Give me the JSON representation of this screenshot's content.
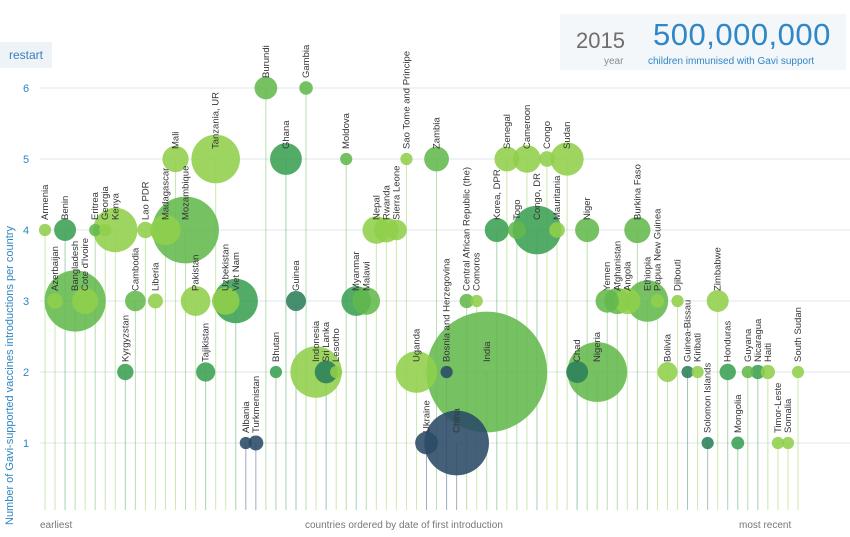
{
  "controls": {
    "restart_label": "restart"
  },
  "counter": {
    "year": "2015",
    "year_label": "year",
    "count": "500,000,000",
    "count_label": "children immunised with Gavi support"
  },
  "colors": {
    "palette": [
      "#8fcf4a",
      "#63b84c",
      "#3aa052",
      "#2b7f5a",
      "#2a4a66"
    ]
  },
  "chart_data": {
    "type": "scatter",
    "encoding": "bubble",
    "ylabel": "Number of Gavi-supported vaccines introductions per country",
    "x_axis": {
      "left": "earliest",
      "center": "countries ordered by date of first introduction",
      "right": "most recent"
    },
    "yticks": [
      1,
      2,
      3,
      4,
      5,
      6
    ],
    "ylim": [
      0,
      6.8
    ],
    "grid": true,
    "points": [
      {
        "country": "Armenia",
        "x": 0,
        "y": 4,
        "size": 1,
        "color": "#8fcf4a"
      },
      {
        "country": "Azerbaijan",
        "x": 1,
        "y": 3,
        "size": 1.5,
        "color": "#8fcf4a"
      },
      {
        "country": "Benin",
        "x": 2,
        "y": 4,
        "size": 2.4,
        "color": "#3aa052"
      },
      {
        "country": "Bangladesh",
        "x": 3,
        "y": 3,
        "size": 8,
        "color": "#63b84c"
      },
      {
        "country": "Cote d'Ivoire",
        "x": 4,
        "y": 3,
        "size": 3,
        "color": "#8fcf4a"
      },
      {
        "country": "Eritrea",
        "x": 5,
        "y": 4,
        "size": 1,
        "color": "#63b84c"
      },
      {
        "country": "Georgia",
        "x": 6,
        "y": 4,
        "size": 1,
        "color": "#8fcf4a"
      },
      {
        "country": "Kenya",
        "x": 7,
        "y": 4,
        "size": 5.6,
        "color": "#8fcf4a"
      },
      {
        "country": "Kyrgyzstan",
        "x": 8,
        "y": 2,
        "size": 1.6,
        "color": "#3aa052"
      },
      {
        "country": "Cambodia",
        "x": 9,
        "y": 3,
        "size": 2.2,
        "color": "#63b84c"
      },
      {
        "country": "Lao PDR",
        "x": 10,
        "y": 4,
        "size": 1.6,
        "color": "#8fcf4a"
      },
      {
        "country": "Liberia",
        "x": 11,
        "y": 3,
        "size": 1.4,
        "color": "#8fcf4a"
      },
      {
        "country": "Madagascar",
        "x": 12,
        "y": 4,
        "size": 3.6,
        "color": "#8fcf4a"
      },
      {
        "country": "Mali",
        "x": 13,
        "y": 5,
        "size": 3,
        "color": "#8fcf4a"
      },
      {
        "country": "Mozambique",
        "x": 14,
        "y": 4,
        "size": 8.8,
        "color": "#63b84c"
      },
      {
        "country": "Pakistan",
        "x": 15,
        "y": 3,
        "size": 3.5,
        "color": "#8fcf4a"
      },
      {
        "country": "Tajikistan",
        "x": 16,
        "y": 2,
        "size": 2,
        "color": "#3aa052"
      },
      {
        "country": "Tanzania, UR",
        "x": 17,
        "y": 5,
        "size": 6.2,
        "color": "#8fcf4a"
      },
      {
        "country": "Uzbekistan",
        "x": 18,
        "y": 3,
        "size": 3.2,
        "color": "#8fcf4a"
      },
      {
        "country": "Viet Nam",
        "x": 19,
        "y": 3,
        "size": 5.6,
        "color": "#3aa052"
      },
      {
        "country": "Albania",
        "x": 20,
        "y": 1,
        "size": 1,
        "color": "#2a4a66"
      },
      {
        "country": "Turkmenistan",
        "x": 21,
        "y": 1,
        "size": 1.4,
        "color": "#2a4a66"
      },
      {
        "country": "Burundi",
        "x": 22,
        "y": 6,
        "size": 2.5,
        "color": "#63b84c"
      },
      {
        "country": "Bhutan",
        "x": 23,
        "y": 2,
        "size": 1,
        "color": "#3aa052"
      },
      {
        "country": "Ghana",
        "x": 24,
        "y": 5,
        "size": 3.8,
        "color": "#3aa052"
      },
      {
        "country": "Guinea",
        "x": 25,
        "y": 3,
        "size": 2.1,
        "color": "#2b7f5a"
      },
      {
        "country": "Gambia",
        "x": 26,
        "y": 6,
        "size": 1.2,
        "color": "#63b84c"
      },
      {
        "country": "Indonesia",
        "x": 27,
        "y": 2,
        "size": 6.6,
        "color": "#8fcf4a"
      },
      {
        "country": "Sri Lanka",
        "x": 28,
        "y": 2,
        "size": 2.5,
        "color": "#2b7f5a"
      },
      {
        "country": "Lesotho",
        "x": 29,
        "y": 2,
        "size": 1,
        "color": "#8fcf4a"
      },
      {
        "country": "Moldova",
        "x": 30,
        "y": 5,
        "size": 1,
        "color": "#63b84c"
      },
      {
        "country": "Myanmar",
        "x": 31,
        "y": 3,
        "size": 3.5,
        "color": "#3aa052"
      },
      {
        "country": "Malawi",
        "x": 32,
        "y": 3,
        "size": 3.2,
        "color": "#63b84c"
      },
      {
        "country": "Nepal",
        "x": 33,
        "y": 4,
        "size": 3.2,
        "color": "#8fcf4a"
      },
      {
        "country": "Rwanda",
        "x": 34,
        "y": 4,
        "size": 2.8,
        "color": "#8fcf4a"
      },
      {
        "country": "Sierra Leone",
        "x": 35,
        "y": 4,
        "size": 2.2,
        "color": "#8fcf4a"
      },
      {
        "country": "Sao Tome and Principe",
        "x": 36,
        "y": 5,
        "size": 1,
        "color": "#8fcf4a"
      },
      {
        "country": "Uganda",
        "x": 37,
        "y": 2,
        "size": 5.2,
        "color": "#8fcf4a"
      },
      {
        "country": "Ukraine",
        "x": 38,
        "y": 1,
        "size": 2.5,
        "color": "#2a4a66"
      },
      {
        "country": "Zambia",
        "x": 39,
        "y": 5,
        "size": 2.8,
        "color": "#63b84c"
      },
      {
        "country": "Bosnia and Herzegovina",
        "x": 40,
        "y": 2,
        "size": 1,
        "color": "#2a4a66"
      },
      {
        "country": "China",
        "x": 41,
        "y": 1,
        "size": 8.5,
        "color": "#2a4a66"
      },
      {
        "country": "Central African Republic (the)",
        "x": 42,
        "y": 3,
        "size": 1.3,
        "color": "#63b84c"
      },
      {
        "country": "Comoros",
        "x": 43,
        "y": 3,
        "size": 1,
        "color": "#8fcf4a"
      },
      {
        "country": "India",
        "x": 44,
        "y": 2,
        "size": 16.5,
        "color": "#63b84c"
      },
      {
        "country": "Korea, DPR",
        "x": 45,
        "y": 4,
        "size": 2.7,
        "color": "#3aa052"
      },
      {
        "country": "Senegal",
        "x": 46,
        "y": 5,
        "size": 2.8,
        "color": "#8fcf4a"
      },
      {
        "country": "Togo",
        "x": 47,
        "y": 4,
        "size": 1.8,
        "color": "#63b84c"
      },
      {
        "country": "Cameroon",
        "x": 48,
        "y": 5,
        "size": 3.2,
        "color": "#8fcf4a"
      },
      {
        "country": "Congo, DR",
        "x": 49,
        "y": 4,
        "size": 6.2,
        "color": "#3aa052"
      },
      {
        "country": "Congo",
        "x": 50,
        "y": 5,
        "size": 1.5,
        "color": "#8fcf4a"
      },
      {
        "country": "Mauritania",
        "x": 51,
        "y": 4,
        "size": 1.5,
        "color": "#8fcf4a"
      },
      {
        "country": "Sudan",
        "x": 52,
        "y": 5,
        "size": 4,
        "color": "#8fcf4a"
      },
      {
        "country": "Chad",
        "x": 53,
        "y": 2,
        "size": 2.4,
        "color": "#2b7f5a"
      },
      {
        "country": "Niger",
        "x": 54,
        "y": 4,
        "size": 2.7,
        "color": "#63b84c"
      },
      {
        "country": "Nigeria",
        "x": 55,
        "y": 2,
        "size": 7.8,
        "color": "#63b84c"
      },
      {
        "country": "Yemen",
        "x": 56,
        "y": 3,
        "size": 2.6,
        "color": "#63b84c"
      },
      {
        "country": "Afghanistan",
        "x": 57,
        "y": 3,
        "size": 3,
        "color": "#63b84c"
      },
      {
        "country": "Angola",
        "x": 58,
        "y": 3,
        "size": 3,
        "color": "#8fcf4a"
      },
      {
        "country": "Burkina Faso",
        "x": 59,
        "y": 4,
        "size": 3,
        "color": "#63b84c"
      },
      {
        "country": "Ethiopia",
        "x": 60,
        "y": 3,
        "size": 5.2,
        "color": "#63b84c"
      },
      {
        "country": "Papua New Guinea",
        "x": 61,
        "y": 3,
        "size": 1.2,
        "color": "#8fcf4a"
      },
      {
        "country": "Bolivia",
        "x": 62,
        "y": 2,
        "size": 2.1,
        "color": "#8fcf4a"
      },
      {
        "country": "Djibouti",
        "x": 63,
        "y": 3,
        "size": 1,
        "color": "#8fcf4a"
      },
      {
        "country": "Guinea-Bissau",
        "x": 64,
        "y": 2,
        "size": 1,
        "color": "#2b7f5a"
      },
      {
        "country": "Kiribati",
        "x": 65,
        "y": 2,
        "size": 1,
        "color": "#8fcf4a"
      },
      {
        "country": "Solomon Islands",
        "x": 66,
        "y": 1,
        "size": 1,
        "color": "#2b7f5a"
      },
      {
        "country": "Zimbabwe",
        "x": 67,
        "y": 3,
        "size": 2.4,
        "color": "#8fcf4a"
      },
      {
        "country": "Honduras",
        "x": 68,
        "y": 2,
        "size": 1.6,
        "color": "#3aa052"
      },
      {
        "country": "Mongolia",
        "x": 69,
        "y": 1,
        "size": 1.1,
        "color": "#3aa052"
      },
      {
        "country": "Guyana",
        "x": 70,
        "y": 2,
        "size": 1,
        "color": "#63b84c"
      },
      {
        "country": "Nicaragua",
        "x": 71,
        "y": 2,
        "size": 1.3,
        "color": "#3aa052"
      },
      {
        "country": "Haiti",
        "x": 72,
        "y": 2,
        "size": 1.3,
        "color": "#8fcf4a"
      },
      {
        "country": "Timor-Leste",
        "x": 73,
        "y": 1,
        "size": 1,
        "color": "#8fcf4a"
      },
      {
        "country": "Somalia",
        "x": 74,
        "y": 1,
        "size": 1,
        "color": "#8fcf4a"
      },
      {
        "country": "South Sudan",
        "x": 75,
        "y": 2,
        "size": 1,
        "color": "#8fcf4a"
      }
    ]
  }
}
